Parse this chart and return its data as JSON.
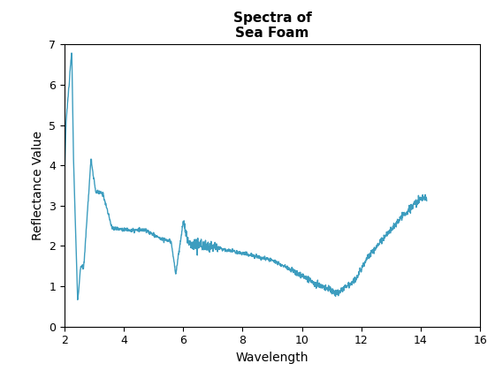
{
  "title": "Spectra of\nSea Foam",
  "xlabel": "Wavelength",
  "ylabel": "Reflectance Value",
  "xlim": [
    2,
    16
  ],
  "ylim": [
    0,
    7
  ],
  "xticks": [
    2,
    4,
    6,
    8,
    10,
    12,
    14,
    16
  ],
  "yticks": [
    0,
    1,
    2,
    3,
    4,
    5,
    6,
    7
  ],
  "line_color": "#3d9dbf",
  "line_width": 1.0,
  "title_fontsize": 11,
  "axis_label_fontsize": 10,
  "figsize": [
    5.6,
    4.2
  ],
  "dpi": 100
}
